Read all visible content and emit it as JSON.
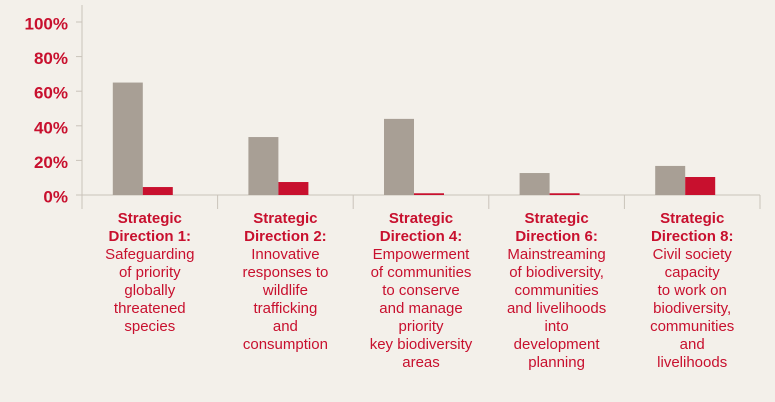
{
  "chart_data": {
    "type": "bar",
    "categories": [
      {
        "heading": [
          "Strategic",
          "Direction 1:"
        ],
        "description": [
          "Safeguarding",
          "of priority",
          "globally",
          "threatened",
          "species"
        ]
      },
      {
        "heading": [
          "Strategic",
          "Direction 2:"
        ],
        "description": [
          "Innovative",
          "responses to",
          "wildlife",
          "trafficking",
          "and",
          "consumption"
        ]
      },
      {
        "heading": [
          "Strategic",
          "Direction 4:"
        ],
        "description": [
          "Empowerment",
          "of communities",
          "to conserve",
          "and manage",
          "priority",
          "key biodiversity",
          "areas"
        ]
      },
      {
        "heading": [
          "Strategic",
          "Direction 6:"
        ],
        "description": [
          "Mainstreaming",
          "of biodiversity,",
          "communities",
          "and livelihoods",
          "into",
          "development",
          "planning"
        ]
      },
      {
        "heading": [
          "Strategic",
          "Direction 8:"
        ],
        "description": [
          "Civil society",
          "capacity",
          "to work on",
          "biodiversity,",
          "communities",
          "and",
          "livelihoods"
        ]
      }
    ],
    "series": [
      {
        "color": "#a89f95",
        "values": [
          65,
          33.5,
          44,
          12.7,
          16.8
        ]
      },
      {
        "color": "#c8102e",
        "values": [
          4.6,
          7.5,
          1,
          1,
          10.4
        ]
      }
    ],
    "ylim": [
      0,
      100
    ],
    "yticks": [
      {
        "value": 0,
        "label": "0%"
      },
      {
        "value": 20,
        "label": "20%"
      },
      {
        "value": 40,
        "label": "40%"
      },
      {
        "value": 60,
        "label": "60%"
      },
      {
        "value": 80,
        "label": "80%"
      },
      {
        "value": 100,
        "label": "100%"
      }
    ],
    "grid": false
  }
}
